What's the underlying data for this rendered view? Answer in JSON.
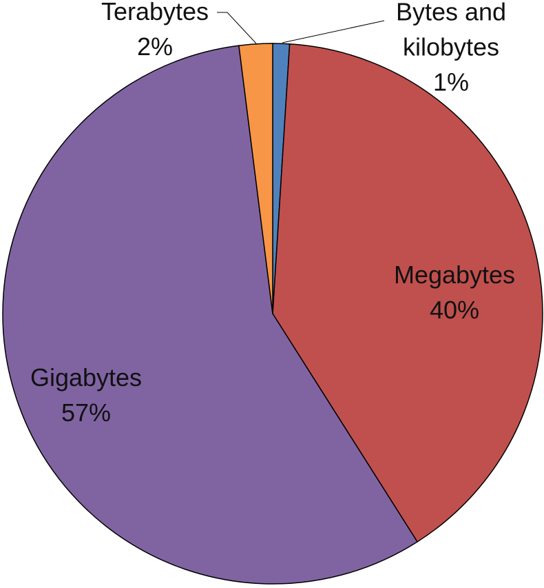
{
  "chart_data": {
    "type": "pie",
    "categories": [
      "Bytes and kilobytes",
      "Megabytes",
      "Gigabytes",
      "Terabytes"
    ],
    "values": [
      1,
      40,
      57,
      2
    ],
    "value_labels": [
      "1%",
      "40%",
      "57%",
      "2%"
    ],
    "colors": [
      "#4f81bd",
      "#c0504d",
      "#8064a2",
      "#f79646"
    ]
  }
}
